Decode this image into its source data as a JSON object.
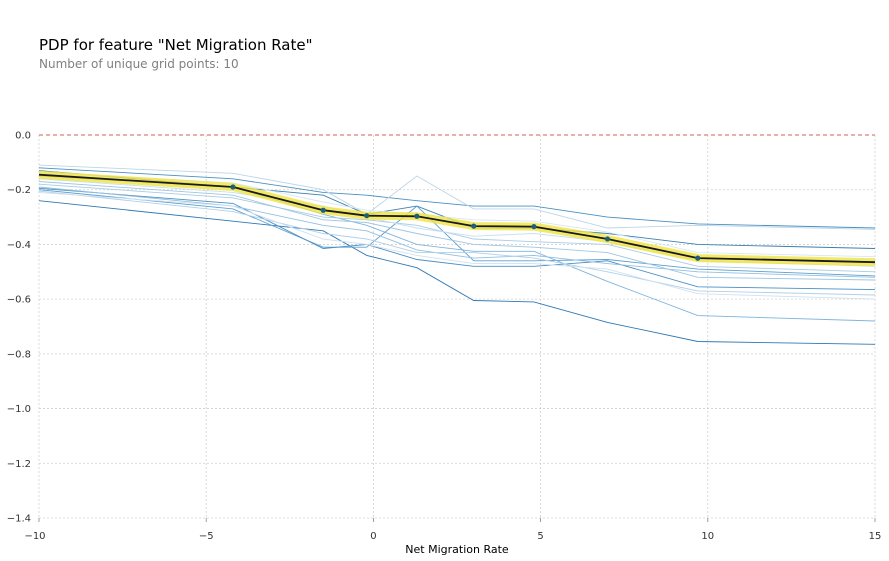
{
  "chart_data": {
    "type": "line",
    "title": "PDP for feature \"Net Migration Rate\"",
    "subtitle": "Number of unique grid points: 10",
    "xlabel": "Net Migration Rate",
    "ylabel": "",
    "xlim": [
      -10,
      15
    ],
    "ylim": [
      -1.4,
      0.0
    ],
    "xticks": [
      -10,
      -5,
      0,
      5,
      10,
      15
    ],
    "xtick_labels": [
      "−10",
      "−5",
      "0",
      "5",
      "10",
      "15"
    ],
    "yticks": [
      0.0,
      -0.2,
      -0.4,
      -0.6,
      -0.8,
      -1.0,
      -1.2,
      -1.4
    ],
    "ytick_labels": [
      "0.0",
      "−0.2",
      "−0.4",
      "−0.6",
      "−0.8",
      "−1.0",
      "−1.2",
      "−1.4"
    ],
    "grid": true,
    "reference_line": {
      "y": 0.0,
      "color": "#d45f4f",
      "style": "dashed"
    },
    "grid_points": [
      -10,
      -4.2,
      -1.5,
      -0.2,
      1.3,
      3.0,
      4.8,
      7.0,
      9.7,
      15
    ],
    "pdp": {
      "values": [
        -0.145,
        -0.19,
        -0.275,
        -0.295,
        -0.297,
        -0.333,
        -0.335,
        -0.38,
        -0.45,
        -0.465
      ],
      "line_color": "#1a1a1a",
      "band_color": "#f0e442",
      "marker_color": "#1f5f7a"
    },
    "ice_lines": [
      {
        "values": [
          -0.12,
          -0.16,
          -0.21,
          -0.22,
          -0.24,
          -0.26,
          -0.26,
          -0.3,
          -0.325,
          -0.34
        ],
        "color": "#4a90c2"
      },
      {
        "values": [
          -0.13,
          -0.19,
          -0.22,
          -0.29,
          -0.26,
          -0.34,
          -0.34,
          -0.36,
          -0.4,
          -0.415
        ],
        "color": "#3a7fb2"
      },
      {
        "values": [
          -0.24,
          -0.315,
          -0.35,
          -0.44,
          -0.485,
          -0.605,
          -0.61,
          -0.685,
          -0.755,
          -0.765
        ],
        "color": "#2f78b4"
      },
      {
        "values": [
          -0.2,
          -0.27,
          -0.41,
          -0.41,
          -0.26,
          -0.46,
          -0.46,
          -0.455,
          -0.49,
          -0.515
        ],
        "color": "#5b9fd0"
      },
      {
        "values": [
          -0.195,
          -0.25,
          -0.415,
          -0.4,
          -0.455,
          -0.48,
          -0.48,
          -0.46,
          -0.555,
          -0.565
        ],
        "color": "#4b8fc3"
      },
      {
        "values": [
          -0.15,
          -0.19,
          -0.29,
          -0.33,
          -0.4,
          -0.425,
          -0.425,
          -0.535,
          -0.66,
          -0.68
        ],
        "color": "#7fb4dc"
      },
      {
        "values": [
          -0.11,
          -0.14,
          -0.2,
          -0.29,
          -0.15,
          -0.27,
          -0.27,
          -0.34,
          -0.33,
          -0.345
        ],
        "color": "#bcd5e8"
      },
      {
        "values": [
          -0.18,
          -0.23,
          -0.3,
          -0.31,
          -0.33,
          -0.38,
          -0.39,
          -0.4,
          -0.48,
          -0.5
        ],
        "color": "#a9cbe5"
      },
      {
        "values": [
          -0.19,
          -0.26,
          -0.33,
          -0.35,
          -0.42,
          -0.45,
          -0.44,
          -0.47,
          -0.5,
          -0.52
        ],
        "color": "#93bfe0"
      },
      {
        "values": [
          -0.16,
          -0.21,
          -0.26,
          -0.3,
          -0.34,
          -0.37,
          -0.36,
          -0.39,
          -0.46,
          -0.48
        ],
        "color": "#c8def0"
      },
      {
        "values": [
          -0.205,
          -0.28,
          -0.36,
          -0.38,
          -0.43,
          -0.43,
          -0.45,
          -0.5,
          -0.57,
          -0.585
        ],
        "color": "#b2d0e8"
      },
      {
        "values": [
          -0.135,
          -0.175,
          -0.245,
          -0.275,
          -0.29,
          -0.31,
          -0.315,
          -0.355,
          -0.43,
          -0.445
        ],
        "color": "#d8e7f3"
      },
      {
        "values": [
          -0.21,
          -0.26,
          -0.38,
          -0.4,
          -0.44,
          -0.47,
          -0.47,
          -0.49,
          -0.58,
          -0.6
        ],
        "color": "#cfe1f0"
      },
      {
        "values": [
          -0.17,
          -0.22,
          -0.31,
          -0.32,
          -0.36,
          -0.4,
          -0.41,
          -0.43,
          -0.52,
          -0.53
        ],
        "color": "#9ec6e3"
      }
    ]
  }
}
